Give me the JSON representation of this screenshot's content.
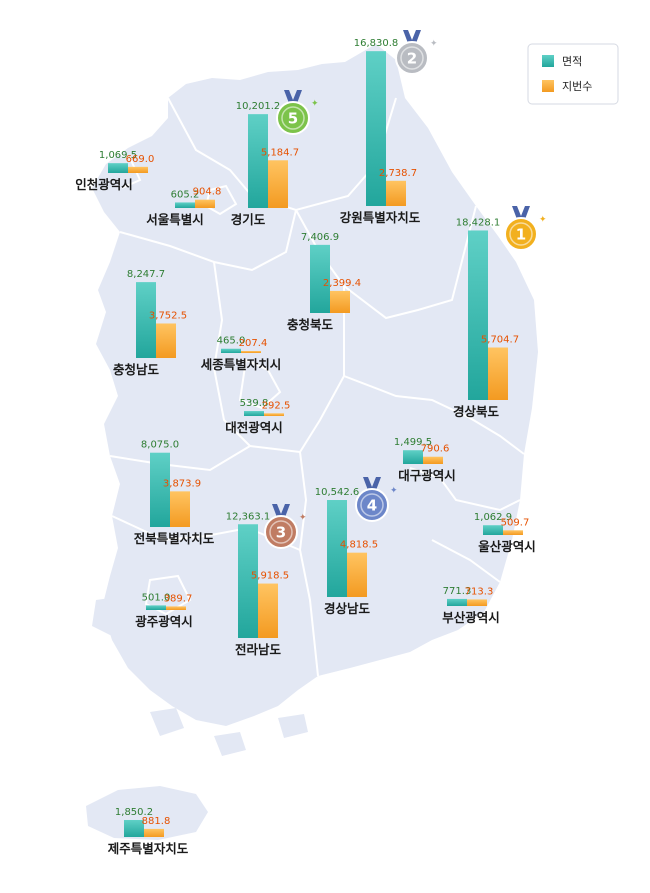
{
  "legend": {
    "position": "top-right",
    "items": [
      {
        "label": "면적",
        "color": "#3dbdb3"
      },
      {
        "label": "지번수",
        "color": "#f9a93a"
      }
    ]
  },
  "colors": {
    "area_top": "#5fd0c6",
    "area_bottom": "#22a69c",
    "parcel_top": "#ffc461",
    "parcel_bottom": "#f39a21",
    "map_fill": "#e3e8f4",
    "map_border": "#ffffff",
    "gold": "#f2b01e",
    "silver": "#b9bcc2",
    "bronze": "#c07c63",
    "blue": "#6c86c9",
    "green": "#7cc34a"
  },
  "chart_data": {
    "type": "bar",
    "categories": [
      "인천광역시",
      "서울특별시",
      "경기도",
      "강원특별자치도",
      "충청북도",
      "충청남도",
      "세종특별자치시",
      "대전광역시",
      "경상북도",
      "대구광역시",
      "전북특별자치도",
      "경상남도",
      "울산광역시",
      "전라남도",
      "광주광역시",
      "부산광역시",
      "제주특별자치도"
    ],
    "series": [
      {
        "name": "면적",
        "values": [
          1069.5,
          605.2,
          10201.2,
          16830.8,
          7406.9,
          8247.7,
          465.0,
          539.8,
          18428.1,
          1499.5,
          8075.0,
          10542.6,
          1062.9,
          12363.1,
          501.0,
          771.3,
          1850.2
        ]
      },
      {
        "name": "지번수",
        "values": [
          669.0,
          904.8,
          5184.7,
          2738.7,
          2399.4,
          3752.5,
          207.4,
          292.5,
          5704.7,
          790.6,
          3873.9,
          4818.5,
          509.7,
          5918.5,
          389.7,
          713.3,
          881.8
        ]
      }
    ],
    "labels": {
      "area": [
        "1,069.5",
        "605.2",
        "10,201.2",
        "16,830.8",
        "7,406.9",
        "8,247.7",
        "465.0",
        "539.8",
        "18,428.1",
        "1,499.5",
        "8,075.0",
        "10,542.6",
        "1,062.9",
        "12,363.1",
        "501.0",
        "771.3",
        "1,850.2"
      ],
      "parcel": [
        "669.0",
        "904.8",
        "5,184.7",
        "2,738.7",
        "2,399.4",
        "3,752.5",
        "207.4",
        "292.5",
        "5,704.7",
        "790.6",
        "3,873.9",
        "4,818.5",
        "509.7",
        "5,918.5",
        "389.7",
        "713.3",
        "881.8"
      ]
    },
    "ranks": [
      {
        "region": "경상북도",
        "rank": "1",
        "medal": "gold"
      },
      {
        "region": "강원특별자치도",
        "rank": "2",
        "medal": "silver"
      },
      {
        "region": "전라남도",
        "rank": "3",
        "medal": "bronze"
      },
      {
        "region": "경상남도",
        "rank": "4",
        "medal": "blue"
      },
      {
        "region": "경기도",
        "rank": "5",
        "medal": "green"
      }
    ]
  }
}
